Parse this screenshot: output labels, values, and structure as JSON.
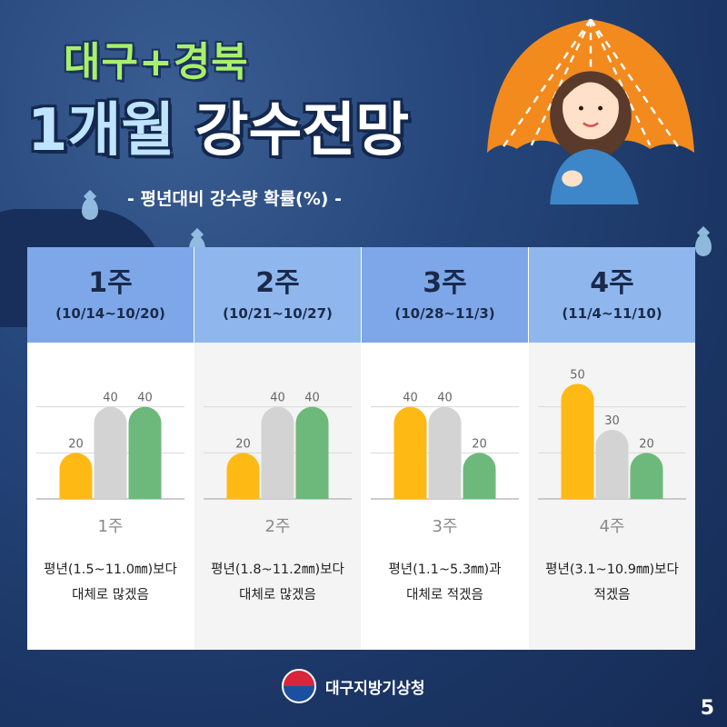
{
  "title": {
    "region": "대구+경북",
    "main_highlight": "1개월",
    "main_rest": "강수전망",
    "subtitle": "- 평년대비 강수량 확률(%) -"
  },
  "colors": {
    "below": "#FFB915",
    "normal": "#D3D3D3",
    "above": "#6CB97B",
    "header_dark": "#7DA7E8",
    "header_light": "#8FB7EE"
  },
  "weeks": [
    {
      "label": "1주",
      "range": "(10/14~10/20)",
      "caption": "1주",
      "desc_line1": "평년(1.5~11.0㎜)보다",
      "desc_line2": "대체로 많겠음"
    },
    {
      "label": "2주",
      "range": "(10/21~10/27)",
      "caption": "2주",
      "desc_line1": "평년(1.8~11.2㎜)보다",
      "desc_line2": "대체로 많겠음"
    },
    {
      "label": "3주",
      "range": "(10/28~11/3)",
      "caption": "3주",
      "desc_line1": "평년(1.1~5.3㎜)과",
      "desc_line2": "대체로 적겠음"
    },
    {
      "label": "4주",
      "range": "(11/4~11/10)",
      "caption": "4주",
      "desc_line1": "평년(3.1~10.9㎜)보다",
      "desc_line2": "적겠음"
    }
  ],
  "chart_data": {
    "type": "bar",
    "categories": [
      "1주",
      "2주",
      "3주",
      "4주"
    ],
    "series": [
      {
        "values": [
          20,
          20,
          40,
          50
        ],
        "color": "#FFB915"
      },
      {
        "values": [
          40,
          40,
          40,
          30
        ],
        "color": "#D3D3D3"
      },
      {
        "values": [
          40,
          40,
          20,
          20
        ],
        "color": "#6CB97B"
      }
    ],
    "ylim": [
      0,
      60
    ],
    "ylabel": "",
    "grid": true,
    "data_labels": true
  },
  "footer": {
    "agency": "대구지방기상청"
  },
  "page_number": "5"
}
